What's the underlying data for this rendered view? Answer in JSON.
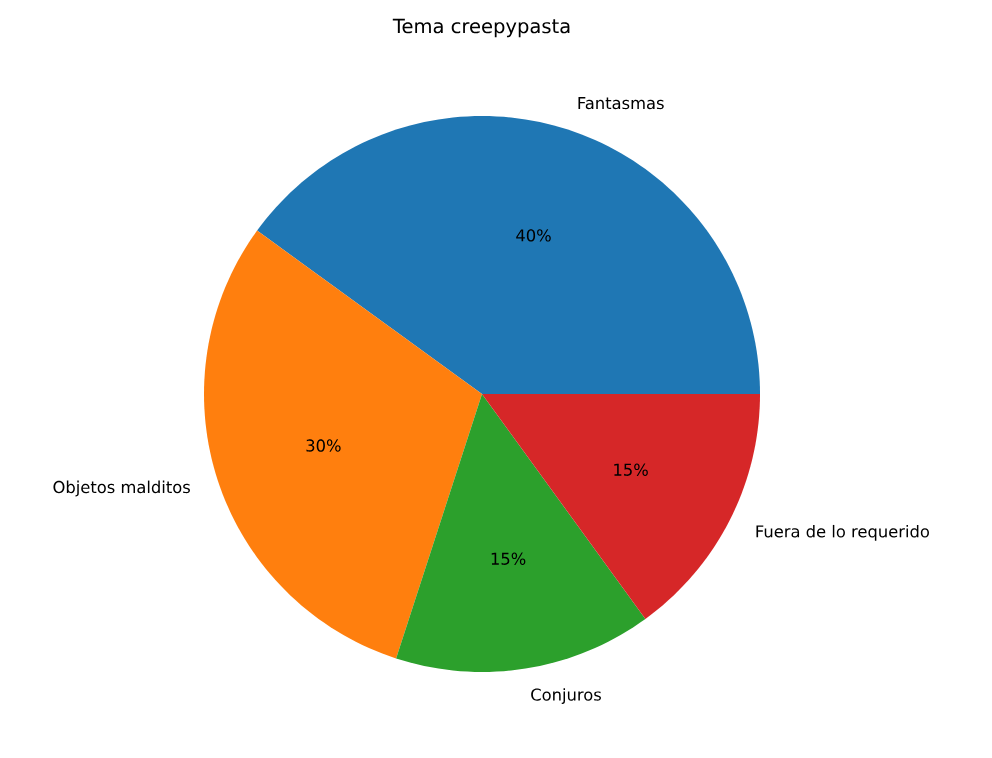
{
  "chart_data": {
    "type": "pie",
    "title": "Tema creepypasta",
    "categories": [
      "Fantasmas",
      "Objetos malditos",
      "Conjuros",
      "Fuera de lo requerido"
    ],
    "values": [
      40,
      30,
      15,
      15
    ],
    "value_labels": [
      "40%",
      "30%",
      "15%",
      "15%"
    ],
    "colors": [
      "#1f77b4",
      "#ff7f0e",
      "#2ca02c",
      "#d62728"
    ]
  }
}
